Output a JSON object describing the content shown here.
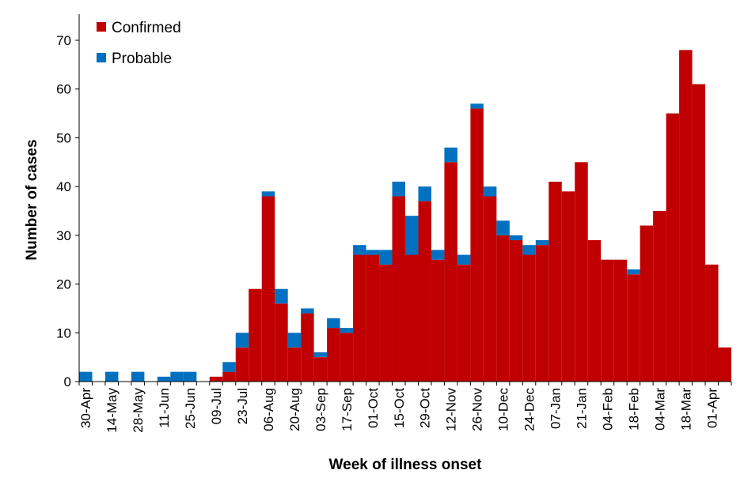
{
  "chart_data": {
    "type": "bar",
    "stacked": true,
    "title": "",
    "xlabel": "Week of illness onset",
    "ylabel": "Number of cases",
    "ylim": [
      0,
      70
    ],
    "yticks": [
      0,
      10,
      20,
      30,
      40,
      50,
      60,
      70
    ],
    "grid": false,
    "legend": {
      "position": "top-left"
    },
    "colors": {
      "Confirmed": "#c00000",
      "Probable": "#0070c0"
    },
    "categories": [
      "30-Apr",
      "07-May",
      "14-May",
      "21-May",
      "28-May",
      "04-Jun",
      "11-Jun",
      "18-Jun",
      "25-Jun",
      "02-Jul",
      "09-Jul",
      "16-Jul",
      "23-Jul",
      "30-Jul",
      "06-Aug",
      "13-Aug",
      "20-Aug",
      "27-Aug",
      "03-Sep",
      "10-Sep",
      "17-Sep",
      "24-Sep",
      "01-Oct",
      "08-Oct",
      "15-Oct",
      "22-Oct",
      "29-Oct",
      "05-Nov",
      "12-Nov",
      "19-Nov",
      "26-Nov",
      "03-Dec",
      "10-Dec",
      "17-Dec",
      "24-Dec",
      "31-Dec",
      "07-Jan",
      "14-Jan",
      "21-Jan",
      "28-Jan",
      "04-Feb",
      "11-Feb",
      "18-Feb",
      "25-Feb",
      "04-Mar",
      "11-Mar",
      "18-Mar",
      "25-Mar",
      "01-Apr",
      "08-Apr"
    ],
    "tick_labels": [
      "30-Apr",
      "14-May",
      "28-May",
      "11-Jun",
      "25-Jun",
      "09-Jul",
      "23-Jul",
      "06-Aug",
      "20-Aug",
      "03-Sep",
      "17-Sep",
      "01-Oct",
      "15-Oct",
      "29-Oct",
      "12-Nov",
      "26-Nov",
      "10-Dec",
      "24-Dec",
      "07-Jan",
      "21-Jan",
      "04-Feb",
      "18-Feb",
      "04-Mar",
      "18-Mar",
      "01-Apr"
    ],
    "series": [
      {
        "name": "Confirmed",
        "values": [
          0,
          0,
          0,
          0,
          0,
          0,
          0,
          0,
          0,
          0,
          1,
          2,
          7,
          19,
          38,
          16,
          7,
          14,
          5,
          11,
          10,
          26,
          26,
          24,
          38,
          26,
          37,
          25,
          45,
          24,
          56,
          38,
          30,
          29,
          26,
          28,
          41,
          39,
          45,
          29,
          25,
          25,
          22,
          32,
          35,
          55,
          68,
          61,
          24,
          7
        ]
      },
      {
        "name": "Probable",
        "values": [
          2,
          0,
          2,
          0,
          2,
          0,
          1,
          2,
          2,
          0,
          0,
          2,
          3,
          0,
          1,
          3,
          3,
          1,
          1,
          2,
          1,
          2,
          1,
          3,
          3,
          8,
          3,
          2,
          3,
          2,
          1,
          2,
          3,
          1,
          2,
          1,
          0,
          0,
          0,
          0,
          0,
          0,
          1,
          0,
          0,
          0,
          0,
          0,
          0,
          0
        ]
      }
    ]
  }
}
